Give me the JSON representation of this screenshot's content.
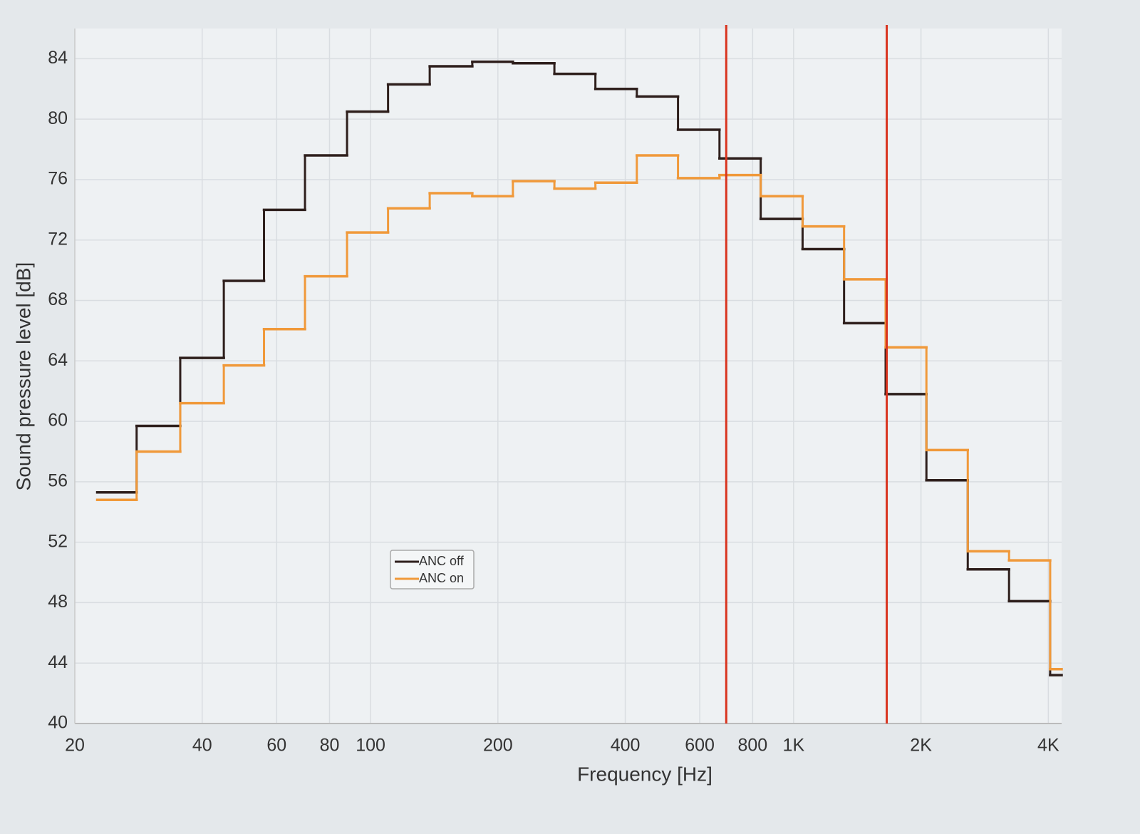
{
  "chart_data": {
    "type": "step",
    "xlabel": "Frequency [Hz]",
    "ylabel": "Sound pressure level [dB]",
    "x": [
      22.6,
      28,
      35.5,
      45,
      56,
      70,
      88,
      110,
      138,
      174,
      217,
      272,
      340,
      426,
      533,
      668,
      836,
      1050,
      1316,
      1650,
      2060,
      2580,
      3230,
      4040
    ],
    "series": [
      {
        "name": "ANC off",
        "color": "#2e1f1c",
        "values": [
          55.3,
          59.7,
          64.2,
          69.3,
          74.0,
          77.6,
          80.5,
          82.3,
          83.5,
          83.8,
          83.7,
          83.0,
          82.0,
          81.5,
          79.3,
          77.4,
          73.4,
          71.4,
          66.5,
          61.8,
          56.1,
          50.2,
          48.1,
          43.2
        ]
      },
      {
        "name": "ANC on",
        "color": "#f0993a",
        "values": [
          54.8,
          58.0,
          61.2,
          63.7,
          66.1,
          69.6,
          72.5,
          74.1,
          75.1,
          74.9,
          75.9,
          75.4,
          75.8,
          77.6,
          76.1,
          76.3,
          74.9,
          72.9,
          69.4,
          64.9,
          58.1,
          51.4,
          50.8,
          43.6
        ]
      }
    ],
    "xlim": [
      20,
      4300
    ],
    "xscale": "log",
    "xticks": [
      20,
      40,
      60,
      80,
      100,
      200,
      400,
      600,
      800,
      {
        "value": 1000,
        "label": "1K"
      },
      {
        "value": 2000,
        "label": "2K"
      },
      {
        "value": 4000,
        "label": "4K"
      }
    ],
    "ylim": [
      40,
      86
    ],
    "yticks": [
      40,
      44,
      48,
      52,
      56,
      60,
      64,
      68,
      72,
      76,
      80,
      84
    ],
    "grid": true,
    "vlines": [
      693,
      1660
    ],
    "vline_color": "#d9341f",
    "legend": "lower-left"
  }
}
